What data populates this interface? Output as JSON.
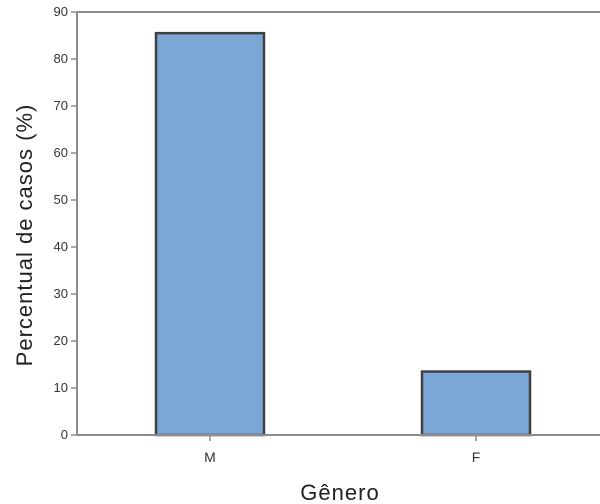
{
  "chart_data": {
    "type": "bar",
    "categories": [
      "M",
      "F"
    ],
    "values": [
      85.5,
      13.5
    ],
    "xlabel": "Gênero",
    "ylabel": "Percentual de casos (%)",
    "ylim": [
      0,
      90
    ],
    "yticks": [
      0,
      10,
      20,
      30,
      40,
      50,
      60,
      70,
      80,
      90
    ],
    "grid": false,
    "legend": "none",
    "colors": {
      "bar_fill": "#7ba7d7",
      "bar_stroke": "#404040",
      "axis": "#8c8c8c"
    }
  }
}
